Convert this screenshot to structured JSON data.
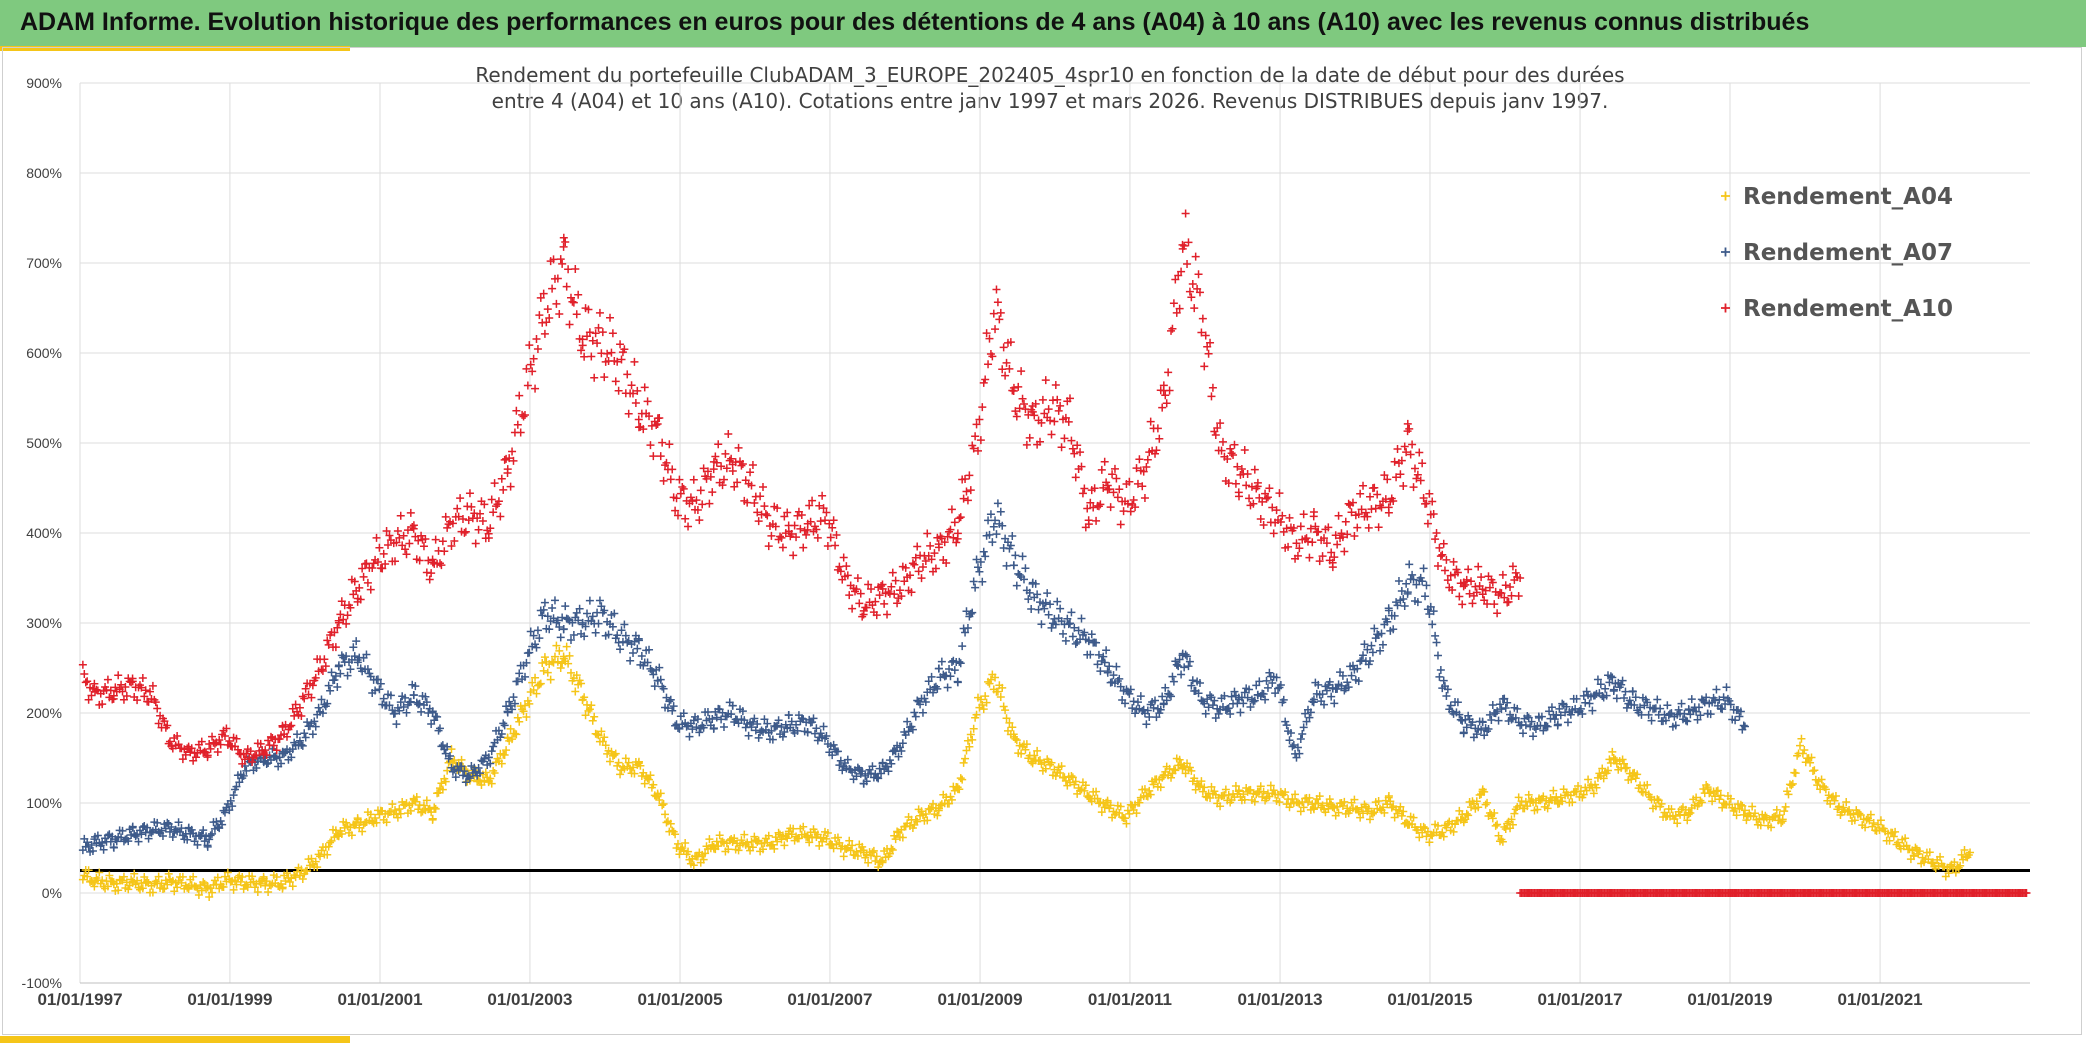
{
  "header": {
    "title": "ADAM Informe. Evolution historique des performances en euros pour des détentions de 4 ans (A04) à 10 ans (A10) avec les revenus connus distribués"
  },
  "colors": {
    "banner": "#7fc97f",
    "accent": "#f5c518",
    "A04": "#f5c518",
    "A07": "#3d5a8a",
    "A10": "#e0202a",
    "reference_line": "#000000"
  },
  "chart_data": {
    "type": "scatter",
    "title": "",
    "subtitle_lines": [
      "Rendement du portefeuille ClubADAM_3_EUROPE_202405_4spr10  en fonction de la date de début pour des durées",
      "entre 4 (A04) et 10 ans (A10). Cotations entre janv 1997 et mars 2026. Revenus DISTRIBUES depuis janv 1997."
    ],
    "xlabel": "",
    "ylabel": "",
    "x_range": [
      "1997-01-01",
      "2023-01-01"
    ],
    "x_ticks": [
      "01/01/1997",
      "01/01/1999",
      "01/01/2001",
      "01/01/2003",
      "01/01/2005",
      "01/01/2007",
      "01/01/2009",
      "01/01/2011",
      "01/01/2013",
      "01/01/2015",
      "01/01/2017",
      "01/01/2019",
      "01/01/2021"
    ],
    "ylim": [
      -100,
      900
    ],
    "y_ticks": [
      "-100%",
      "0%",
      "100%",
      "200%",
      "300%",
      "400%",
      "500%",
      "600%",
      "700%",
      "800%",
      "900%"
    ],
    "grid": true,
    "legend_position": "top-right",
    "reference_line_y": 25,
    "marker": "+",
    "series": [
      {
        "name": "Rendement_A04",
        "color_key": "A04",
        "points": [
          [
            "1997-01",
            20
          ],
          [
            "1997-03",
            14
          ],
          [
            "1997-06",
            10
          ],
          [
            "1997-09",
            12
          ],
          [
            "1997-12",
            8
          ],
          [
            "1998-03",
            12
          ],
          [
            "1998-06",
            10
          ],
          [
            "1998-09",
            4
          ],
          [
            "1998-12",
            14
          ],
          [
            "1999-03",
            12
          ],
          [
            "1999-06",
            10
          ],
          [
            "1999-09",
            12
          ],
          [
            "1999-12",
            22
          ],
          [
            "2000-03",
            40
          ],
          [
            "2000-06",
            70
          ],
          [
            "2000-09",
            75
          ],
          [
            "2000-12",
            85
          ],
          [
            "2001-03",
            90
          ],
          [
            "2001-06",
            100
          ],
          [
            "2001-09",
            90
          ],
          [
            "2001-12",
            150
          ],
          [
            "2002-03",
            130
          ],
          [
            "2002-06",
            125
          ],
          [
            "2002-09",
            165
          ],
          [
            "2002-12",
            210
          ],
          [
            "2003-03",
            250
          ],
          [
            "2003-06",
            265
          ],
          [
            "2003-09",
            220
          ],
          [
            "2003-12",
            170
          ],
          [
            "2004-03",
            140
          ],
          [
            "2004-06",
            140
          ],
          [
            "2004-09",
            110
          ],
          [
            "2004-12",
            55
          ],
          [
            "2005-03",
            35
          ],
          [
            "2005-06",
            55
          ],
          [
            "2005-09",
            55
          ],
          [
            "2005-12",
            55
          ],
          [
            "2006-03",
            55
          ],
          [
            "2006-06",
            65
          ],
          [
            "2006-09",
            65
          ],
          [
            "2006-12",
            60
          ],
          [
            "2007-03",
            50
          ],
          [
            "2007-06",
            45
          ],
          [
            "2007-09",
            35
          ],
          [
            "2007-12",
            70
          ],
          [
            "2008-03",
            85
          ],
          [
            "2008-06",
            95
          ],
          [
            "2008-09",
            115
          ],
          [
            "2008-12",
            200
          ],
          [
            "2009-03",
            240
          ],
          [
            "2009-06",
            170
          ],
          [
            "2009-09",
            150
          ],
          [
            "2009-12",
            140
          ],
          [
            "2010-03",
            125
          ],
          [
            "2010-06",
            110
          ],
          [
            "2010-09",
            95
          ],
          [
            "2010-12",
            85
          ],
          [
            "2011-03",
            110
          ],
          [
            "2011-06",
            130
          ],
          [
            "2011-09",
            145
          ],
          [
            "2011-12",
            115
          ],
          [
            "2012-03",
            105
          ],
          [
            "2012-06",
            110
          ],
          [
            "2012-09",
            110
          ],
          [
            "2012-12",
            110
          ],
          [
            "2013-03",
            100
          ],
          [
            "2013-06",
            100
          ],
          [
            "2013-09",
            95
          ],
          [
            "2013-12",
            95
          ],
          [
            "2014-03",
            90
          ],
          [
            "2014-06",
            100
          ],
          [
            "2014-09",
            80
          ],
          [
            "2014-12",
            65
          ],
          [
            "2015-03",
            70
          ],
          [
            "2015-06",
            85
          ],
          [
            "2015-09",
            110
          ],
          [
            "2015-12",
            60
          ],
          [
            "2016-03",
            100
          ],
          [
            "2016-06",
            100
          ],
          [
            "2016-09",
            105
          ],
          [
            "2016-12",
            110
          ],
          [
            "2017-03",
            120
          ],
          [
            "2017-06",
            150
          ],
          [
            "2017-09",
            130
          ],
          [
            "2017-12",
            105
          ],
          [
            "2018-03",
            85
          ],
          [
            "2018-06",
            90
          ],
          [
            "2018-09",
            115
          ],
          [
            "2018-12",
            100
          ],
          [
            "2019-03",
            90
          ],
          [
            "2019-06",
            80
          ],
          [
            "2019-09",
            85
          ],
          [
            "2019-12",
            165
          ],
          [
            "2020-03",
            120
          ],
          [
            "2020-06",
            95
          ],
          [
            "2020-09",
            85
          ],
          [
            "2020-12",
            75
          ],
          [
            "2021-03",
            60
          ],
          [
            "2021-06",
            45
          ],
          [
            "2021-09",
            35
          ],
          [
            "2021-12",
            25
          ],
          [
            "2022-03",
            45
          ]
        ]
      },
      {
        "name": "Rendement_A07",
        "color_key": "A07",
        "points": [
          [
            "1997-01",
            50
          ],
          [
            "1997-03",
            55
          ],
          [
            "1997-06",
            60
          ],
          [
            "1997-09",
            65
          ],
          [
            "1997-12",
            70
          ],
          [
            "1998-03",
            72
          ],
          [
            "1998-06",
            65
          ],
          [
            "1998-09",
            60
          ],
          [
            "1998-12",
            90
          ],
          [
            "1999-03",
            140
          ],
          [
            "1999-06",
            150
          ],
          [
            "1999-09",
            150
          ],
          [
            "1999-12",
            170
          ],
          [
            "2000-03",
            200
          ],
          [
            "2000-06",
            250
          ],
          [
            "2000-09",
            265
          ],
          [
            "2000-12",
            230
          ],
          [
            "2001-03",
            200
          ],
          [
            "2001-06",
            220
          ],
          [
            "2001-09",
            200
          ],
          [
            "2001-12",
            140
          ],
          [
            "2002-03",
            130
          ],
          [
            "2002-06",
            150
          ],
          [
            "2002-09",
            200
          ],
          [
            "2002-12",
            260
          ],
          [
            "2003-03",
            310
          ],
          [
            "2003-06",
            300
          ],
          [
            "2003-09",
            300
          ],
          [
            "2003-12",
            310
          ],
          [
            "2004-03",
            285
          ],
          [
            "2004-06",
            270
          ],
          [
            "2004-09",
            240
          ],
          [
            "2004-12",
            190
          ],
          [
            "2005-03",
            185
          ],
          [
            "2005-06",
            195
          ],
          [
            "2005-09",
            200
          ],
          [
            "2005-12",
            185
          ],
          [
            "2006-03",
            180
          ],
          [
            "2006-06",
            185
          ],
          [
            "2006-09",
            190
          ],
          [
            "2006-12",
            170
          ],
          [
            "2007-03",
            140
          ],
          [
            "2007-06",
            130
          ],
          [
            "2007-09",
            135
          ],
          [
            "2007-12",
            165
          ],
          [
            "2008-03",
            210
          ],
          [
            "2008-06",
            240
          ],
          [
            "2008-09",
            250
          ],
          [
            "2008-12",
            350
          ],
          [
            "2009-03",
            420
          ],
          [
            "2009-06",
            370
          ],
          [
            "2009-09",
            330
          ],
          [
            "2009-12",
            310
          ],
          [
            "2010-03",
            295
          ],
          [
            "2010-06",
            280
          ],
          [
            "2010-09",
            250
          ],
          [
            "2010-12",
            220
          ],
          [
            "2011-03",
            200
          ],
          [
            "2011-06",
            210
          ],
          [
            "2011-09",
            265
          ],
          [
            "2011-12",
            215
          ],
          [
            "2012-03",
            205
          ],
          [
            "2012-06",
            215
          ],
          [
            "2012-09",
            220
          ],
          [
            "2012-12",
            240
          ],
          [
            "2013-03",
            150
          ],
          [
            "2013-06",
            220
          ],
          [
            "2013-09",
            225
          ],
          [
            "2013-12",
            240
          ],
          [
            "2014-03",
            270
          ],
          [
            "2014-06",
            300
          ],
          [
            "2014-09",
            345
          ],
          [
            "2014-12",
            340
          ],
          [
            "2015-03",
            220
          ],
          [
            "2015-06",
            190
          ],
          [
            "2015-09",
            180
          ],
          [
            "2015-12",
            210
          ],
          [
            "2016-03",
            190
          ],
          [
            "2016-06",
            185
          ],
          [
            "2016-09",
            200
          ],
          [
            "2016-12",
            205
          ],
          [
            "2017-03",
            220
          ],
          [
            "2017-06",
            235
          ],
          [
            "2017-09",
            210
          ],
          [
            "2017-12",
            205
          ],
          [
            "2018-03",
            195
          ],
          [
            "2018-06",
            200
          ],
          [
            "2018-09",
            210
          ],
          [
            "2018-12",
            215
          ],
          [
            "2019-03",
            185
          ]
        ]
      },
      {
        "name": "Rendement_A10",
        "color_key": "A10",
        "points": [
          [
            "1997-01",
            240
          ],
          [
            "1997-03",
            220
          ],
          [
            "1997-06",
            225
          ],
          [
            "1997-09",
            230
          ],
          [
            "1997-12",
            220
          ],
          [
            "1998-03",
            170
          ],
          [
            "1998-06",
            155
          ],
          [
            "1998-09",
            160
          ],
          [
            "1998-12",
            175
          ],
          [
            "1999-03",
            150
          ],
          [
            "1999-06",
            160
          ],
          [
            "1999-09",
            175
          ],
          [
            "1999-12",
            210
          ],
          [
            "2000-03",
            250
          ],
          [
            "2000-06",
            300
          ],
          [
            "2000-09",
            340
          ],
          [
            "2000-12",
            370
          ],
          [
            "2001-03",
            390
          ],
          [
            "2001-06",
            400
          ],
          [
            "2001-09",
            360
          ],
          [
            "2001-12",
            410
          ],
          [
            "2002-03",
            420
          ],
          [
            "2002-06",
            410
          ],
          [
            "2002-09",
            470
          ],
          [
            "2002-12",
            560
          ],
          [
            "2003-03",
            650
          ],
          [
            "2003-06",
            700
          ],
          [
            "2003-09",
            620
          ],
          [
            "2003-12",
            610
          ],
          [
            "2004-03",
            590
          ],
          [
            "2004-06",
            540
          ],
          [
            "2004-09",
            510
          ],
          [
            "2004-12",
            440
          ],
          [
            "2005-03",
            430
          ],
          [
            "2005-06",
            470
          ],
          [
            "2005-09",
            480
          ],
          [
            "2005-12",
            450
          ],
          [
            "2006-03",
            410
          ],
          [
            "2006-06",
            400
          ],
          [
            "2006-09",
            410
          ],
          [
            "2006-12",
            420
          ],
          [
            "2007-03",
            350
          ],
          [
            "2007-06",
            320
          ],
          [
            "2007-09",
            330
          ],
          [
            "2007-12",
            340
          ],
          [
            "2008-03",
            370
          ],
          [
            "2008-06",
            380
          ],
          [
            "2008-09",
            410
          ],
          [
            "2008-12",
            500
          ],
          [
            "2009-03",
            650
          ],
          [
            "2009-06",
            560
          ],
          [
            "2009-09",
            520
          ],
          [
            "2009-12",
            540
          ],
          [
            "2010-03",
            520
          ],
          [
            "2010-06",
            420
          ],
          [
            "2010-09",
            460
          ],
          [
            "2010-12",
            430
          ],
          [
            "2011-03",
            470
          ],
          [
            "2011-06",
            540
          ],
          [
            "2011-09",
            720
          ],
          [
            "2011-12",
            650
          ],
          [
            "2012-03",
            490
          ],
          [
            "2012-06",
            470
          ],
          [
            "2012-09",
            440
          ],
          [
            "2012-12",
            420
          ],
          [
            "2013-03",
            390
          ],
          [
            "2013-06",
            400
          ],
          [
            "2013-09",
            380
          ],
          [
            "2013-12",
            420
          ],
          [
            "2014-03",
            430
          ],
          [
            "2014-06",
            440
          ],
          [
            "2014-09",
            500
          ],
          [
            "2014-12",
            440
          ],
          [
            "2015-03",
            360
          ],
          [
            "2015-06",
            340
          ],
          [
            "2015-09",
            340
          ],
          [
            "2015-12",
            330
          ],
          [
            "2016-03",
            350
          ]
        ]
      },
      {
        "name": "",
        "color_key": "A10",
        "points": [
          [
            "2016-03",
            0
          ],
          [
            "2017-01",
            0
          ],
          [
            "2018-01",
            0
          ],
          [
            "2019-01",
            0
          ],
          [
            "2020-01",
            0
          ],
          [
            "2021-01",
            0
          ],
          [
            "2022-01",
            0
          ],
          [
            "2022-12",
            0
          ]
        ]
      }
    ]
  }
}
